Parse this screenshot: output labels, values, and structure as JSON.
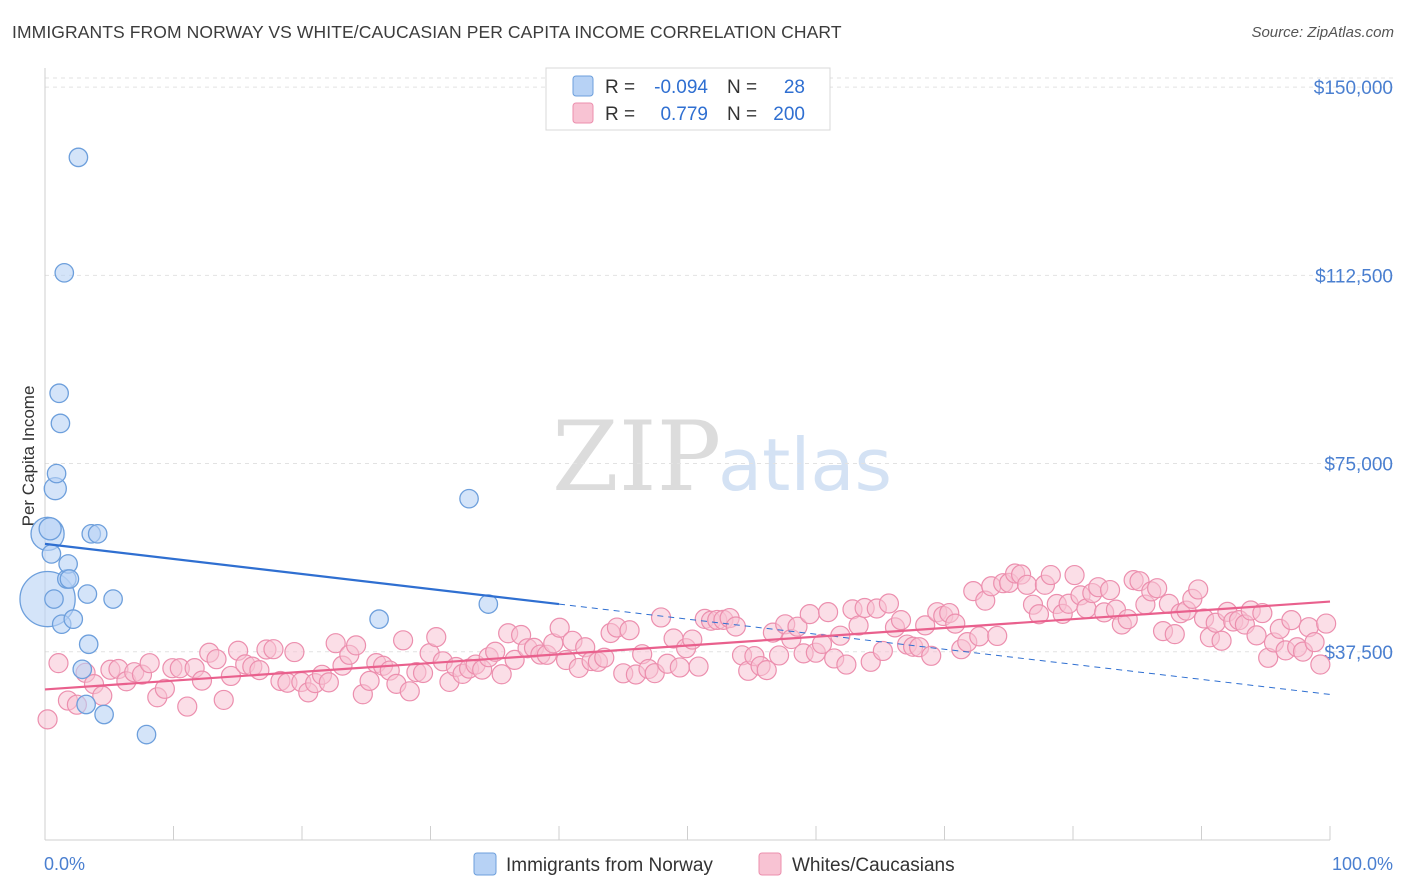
{
  "title": "IMMIGRANTS FROM NORWAY VS WHITE/CAUCASIAN PER CAPITA INCOME CORRELATION CHART",
  "source": "Source: ZipAtlas.com",
  "watermark": {
    "zip": "ZIP",
    "atlas": "atlas"
  },
  "colors": {
    "norway_fill": "#b7d2f5",
    "norway_stroke": "#6d9fdc",
    "norway_line": "#2f6fd1",
    "white_fill": "#f8c3d3",
    "white_stroke": "#ec8fae",
    "white_line": "#e9608d",
    "grid": "#e2e2e2",
    "axis_text": "#4a7fd0"
  },
  "legend": {
    "rows": [
      {
        "r_label": "R =",
        "r_value": "-0.094",
        "n_label": "N =",
        "n_value": "28"
      },
      {
        "r_label": "R =",
        "r_value": "0.779",
        "n_label": "N =",
        "n_value": "200"
      }
    ]
  },
  "chart_data": {
    "type": "scatter",
    "title": "IMMIGRANTS FROM NORWAY VS WHITE/CAUCASIAN PER CAPITA INCOME CORRELATION CHART",
    "xlabel": "",
    "ylabel": "Per Capita Income",
    "xlim": [
      0,
      100
    ],
    "ylim": [
      0,
      155000
    ],
    "x_tick_labels": [
      "0.0%",
      "100.0%"
    ],
    "y_ticks": [
      37500,
      75000,
      112500,
      150000
    ],
    "y_tick_labels": [
      "$37,500",
      "$75,000",
      "$112,500",
      "$150,000"
    ],
    "grid": true,
    "legend_position": "top-center",
    "series": [
      {
        "name": "Immigrants from Norway",
        "r": -0.094,
        "n": 28,
        "points": [
          [
            0.2,
            61000,
            18
          ],
          [
            0.2,
            48000,
            30
          ],
          [
            0.4,
            62000,
            12
          ],
          [
            0.5,
            57000,
            10
          ],
          [
            0.7,
            48000,
            10
          ],
          [
            0.8,
            70000,
            12
          ],
          [
            0.9,
            73000,
            10
          ],
          [
            1.1,
            89000,
            10
          ],
          [
            1.2,
            83000,
            10
          ],
          [
            1.3,
            43000,
            10
          ],
          [
            1.5,
            113000,
            10
          ],
          [
            1.7,
            52000,
            10
          ],
          [
            1.8,
            55000,
            10
          ],
          [
            1.9,
            52000,
            10
          ],
          [
            2.2,
            44000,
            10
          ],
          [
            2.6,
            136000,
            10
          ],
          [
            2.9,
            34000,
            10
          ],
          [
            3.2,
            27000,
            10
          ],
          [
            3.3,
            49000,
            10
          ],
          [
            3.4,
            39000,
            10
          ],
          [
            3.6,
            61000,
            10
          ],
          [
            4.1,
            61000,
            10
          ],
          [
            4.6,
            25000,
            10
          ],
          [
            5.3,
            48000,
            10
          ],
          [
            7.9,
            21000,
            10
          ],
          [
            26.0,
            44000,
            10
          ],
          [
            33.0,
            68000,
            10
          ],
          [
            34.5,
            47000,
            10
          ]
        ],
        "trend": {
          "x0": 0,
          "y0": 59000,
          "x1": 40,
          "y1": 47000,
          "dash_x1": 100,
          "dash_y1": 29000
        }
      },
      {
        "name": "Whites/Caucasians",
        "r": 0.779,
        "n": 200,
        "trend": {
          "x0": 0,
          "y0": 30000,
          "x1": 100,
          "y1": 47500
        }
      }
    ]
  }
}
